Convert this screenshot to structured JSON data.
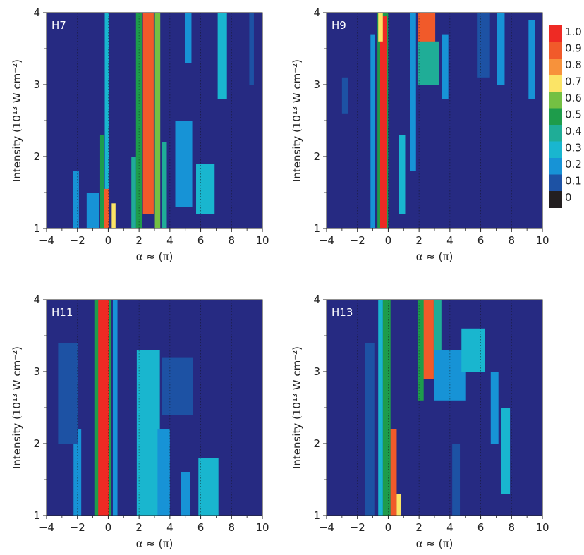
{
  "chart_data": [
    {
      "type": "heatmap",
      "label": "H7",
      "xlabel": "α ≈ (π)",
      "ylabel": "Intensity (10¹³ W cm⁻²)",
      "xlim": [
        -4,
        10
      ],
      "ylim": [
        1,
        4
      ],
      "xticks": [
        "-4",
        "-2",
        "0",
        "2",
        "4",
        "6",
        "8",
        "10"
      ],
      "yticks": [
        "1",
        "2",
        "3",
        "4"
      ],
      "features": [
        {
          "x": -0.1,
          "w": 0.25,
          "y0": 1.0,
          "y1": 4.0,
          "v": 0.3
        },
        {
          "x": -0.4,
          "w": 0.25,
          "y0": 1.0,
          "y1": 2.3,
          "v": 0.55
        },
        {
          "x": -0.1,
          "w": 0.3,
          "y0": 1.0,
          "y1": 1.55,
          "v": 0.95
        },
        {
          "x": 0.35,
          "w": 0.25,
          "y0": 1.0,
          "y1": 1.35,
          "v": 0.75
        },
        {
          "x": -2.1,
          "w": 0.4,
          "y0": 1.0,
          "y1": 1.8,
          "v": 0.22
        },
        {
          "x": -1.0,
          "w": 0.8,
          "y0": 1.0,
          "y1": 1.5,
          "v": 0.18
        },
        {
          "x": 2.0,
          "w": 0.4,
          "y0": 1.0,
          "y1": 4.0,
          "v": 0.55
        },
        {
          "x": 2.6,
          "w": 0.7,
          "y0": 1.2,
          "y1": 4.0,
          "v": 0.95
        },
        {
          "x": 3.2,
          "w": 0.35,
          "y0": 1.0,
          "y1": 4.0,
          "v": 0.6
        },
        {
          "x": 3.65,
          "w": 0.3,
          "y0": 1.0,
          "y1": 2.2,
          "v": 0.4
        },
        {
          "x": 1.65,
          "w": 0.3,
          "y0": 1.0,
          "y1": 2.0,
          "v": 0.4
        },
        {
          "x": 4.9,
          "w": 1.1,
          "y0": 1.3,
          "y1": 2.5,
          "v": 0.2
        },
        {
          "x": 6.3,
          "w": 1.2,
          "y0": 1.2,
          "y1": 1.9,
          "v": 0.28
        },
        {
          "x": 7.4,
          "w": 0.6,
          "y0": 2.8,
          "y1": 4.0,
          "v": 0.32
        },
        {
          "x": 5.2,
          "w": 0.4,
          "y0": 3.3,
          "y1": 4.0,
          "v": 0.18
        },
        {
          "x": 9.3,
          "w": 0.3,
          "y0": 3.0,
          "y1": 4.0,
          "v": 0.12
        }
      ]
    },
    {
      "type": "heatmap",
      "label": "H9",
      "xlabel": "α ≈ (π)",
      "ylabel": "Intensity (10¹³ W cm⁻²)",
      "xlim": [
        -4,
        10
      ],
      "ylim": [
        1,
        4
      ],
      "xticks": [
        "-4",
        "-2",
        "0",
        "2",
        "4",
        "6",
        "8",
        "10"
      ],
      "yticks": [
        "1",
        "2",
        "3",
        "4"
      ],
      "features": [
        {
          "x": -0.35,
          "w": 0.7,
          "y0": 1.0,
          "y1": 4.0,
          "v": 0.55
        },
        {
          "x": -0.3,
          "w": 0.45,
          "y0": 1.0,
          "y1": 3.95,
          "v": 0.97
        },
        {
          "x": -0.5,
          "w": 0.3,
          "y0": 3.6,
          "y1": 4.0,
          "v": 0.7
        },
        {
          "x": -1.0,
          "w": 0.3,
          "y0": 1.0,
          "y1": 3.7,
          "v": 0.2
        },
        {
          "x": 0.9,
          "w": 0.4,
          "y0": 1.2,
          "y1": 2.3,
          "v": 0.28
        },
        {
          "x": 2.5,
          "w": 1.1,
          "y0": 3.5,
          "y1": 4.0,
          "v": 0.93
        },
        {
          "x": 2.6,
          "w": 1.4,
          "y0": 3.0,
          "y1": 3.6,
          "v": 0.45
        },
        {
          "x": 3.7,
          "w": 0.4,
          "y0": 2.8,
          "y1": 3.7,
          "v": 0.2
        },
        {
          "x": 1.6,
          "w": 0.4,
          "y0": 1.8,
          "y1": 4.0,
          "v": 0.22
        },
        {
          "x": 7.3,
          "w": 0.5,
          "y0": 3.0,
          "y1": 4.0,
          "v": 0.25
        },
        {
          "x": 6.2,
          "w": 0.8,
          "y0": 3.1,
          "y1": 4.0,
          "v": 0.15
        },
        {
          "x": 9.3,
          "w": 0.4,
          "y0": 2.8,
          "y1": 3.9,
          "v": 0.2
        },
        {
          "x": -2.8,
          "w": 0.4,
          "y0": 2.6,
          "y1": 3.1,
          "v": 0.13
        }
      ]
    },
    {
      "type": "heatmap",
      "label": "H11",
      "xlabel": "α ≈ (π)",
      "ylabel": "Intensity (10¹³ W cm⁻²)",
      "xlim": [
        -4,
        10
      ],
      "ylim": [
        1,
        4
      ],
      "xticks": [
        "-4",
        "-2",
        "0",
        "2",
        "4",
        "6",
        "8",
        "10"
      ],
      "yticks": [
        "1",
        "2",
        "3",
        "4"
      ],
      "features": [
        {
          "x": -0.35,
          "w": 1.1,
          "y0": 1.0,
          "y1": 4.0,
          "v": 0.52
        },
        {
          "x": -0.3,
          "w": 0.7,
          "y0": 1.0,
          "y1": 4.0,
          "v": 0.97
        },
        {
          "x": 0.45,
          "w": 0.3,
          "y0": 1.0,
          "y1": 4.0,
          "v": 0.25
        },
        {
          "x": -2.0,
          "w": 0.5,
          "y0": 1.0,
          "y1": 2.2,
          "v": 0.22
        },
        {
          "x": -2.6,
          "w": 1.3,
          "y0": 2.0,
          "y1": 3.4,
          "v": 0.15
        },
        {
          "x": 2.6,
          "w": 1.5,
          "y0": 1.0,
          "y1": 3.3,
          "v": 0.3
        },
        {
          "x": 3.6,
          "w": 0.8,
          "y0": 1.0,
          "y1": 2.2,
          "v": 0.22
        },
        {
          "x": 6.5,
          "w": 1.3,
          "y0": 1.0,
          "y1": 1.8,
          "v": 0.3
        },
        {
          "x": 5.0,
          "w": 0.6,
          "y0": 1.0,
          "y1": 1.6,
          "v": 0.2
        },
        {
          "x": 4.5,
          "w": 2.0,
          "y0": 2.4,
          "y1": 3.2,
          "v": 0.12
        }
      ]
    },
    {
      "type": "heatmap",
      "label": "H13",
      "xlabel": "α ≈ (π)",
      "ylabel": "Intensity (10¹³ W cm⁻²)",
      "xlim": [
        -4,
        10
      ],
      "ylim": [
        1,
        4
      ],
      "xticks": [
        "-4",
        "-2",
        "0",
        "2",
        "4",
        "6",
        "8",
        "10"
      ],
      "yticks": [
        "1",
        "2",
        "3",
        "4"
      ],
      "features": [
        {
          "x": -0.1,
          "w": 0.5,
          "y0": 1.0,
          "y1": 4.0,
          "v": 0.55
        },
        {
          "x": 0.35,
          "w": 0.4,
          "y0": 1.0,
          "y1": 2.2,
          "v": 0.93
        },
        {
          "x": 0.7,
          "w": 0.3,
          "y0": 1.0,
          "y1": 1.3,
          "v": 0.7
        },
        {
          "x": -0.5,
          "w": 0.3,
          "y0": 1.0,
          "y1": 4.0,
          "v": 0.35
        },
        {
          "x": 2.6,
          "w": 0.7,
          "y0": 2.9,
          "y1": 4.0,
          "v": 0.95
        },
        {
          "x": 2.1,
          "w": 0.4,
          "y0": 2.6,
          "y1": 4.0,
          "v": 0.55
        },
        {
          "x": 3.2,
          "w": 0.5,
          "y0": 2.9,
          "y1": 4.0,
          "v": 0.4
        },
        {
          "x": 4.0,
          "w": 2.0,
          "y0": 2.6,
          "y1": 3.3,
          "v": 0.18
        },
        {
          "x": 5.5,
          "w": 1.5,
          "y0": 3.0,
          "y1": 3.6,
          "v": 0.28
        },
        {
          "x": 7.6,
          "w": 0.6,
          "y0": 1.3,
          "y1": 2.5,
          "v": 0.3
        },
        {
          "x": 6.9,
          "w": 0.5,
          "y0": 2.0,
          "y1": 3.0,
          "v": 0.18
        },
        {
          "x": -1.2,
          "w": 0.6,
          "y0": 1.0,
          "y1": 3.4,
          "v": 0.15
        },
        {
          "x": 4.4,
          "w": 0.5,
          "y0": 1.0,
          "y1": 2.0,
          "v": 0.12
        }
      ]
    }
  ],
  "colorbar": {
    "labels": [
      "1.0",
      "0.9",
      "0.8",
      "0.7",
      "0.6",
      "0.5",
      "0.4",
      "0.3",
      "0.2",
      "0.1",
      "0"
    ],
    "colors": [
      "#ee2a24",
      "#f15a2a",
      "#f7923b",
      "#fbe466",
      "#74c043",
      "#1e9c4b",
      "#1fad97",
      "#19b6cf",
      "#1793d6",
      "#1d52a4",
      "#231f20"
    ]
  },
  "background_color": "#262a82"
}
